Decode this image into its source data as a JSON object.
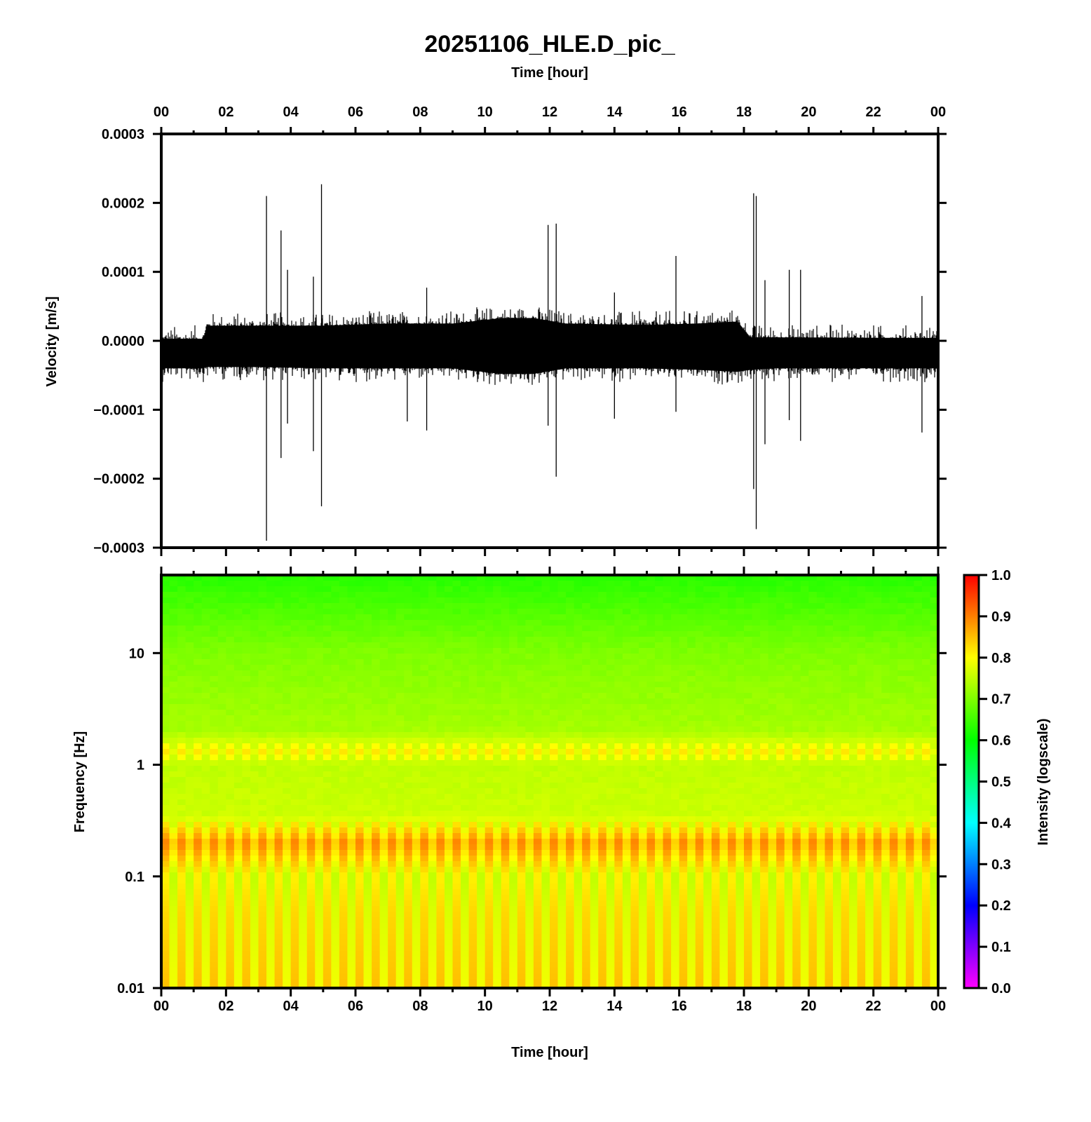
{
  "title": "20251106_HLE.D_pic_",
  "colors": {
    "trace": "#000000",
    "frame": "#000000",
    "background": "#ffffff"
  },
  "chart_data": [
    {
      "type": "line",
      "name": "seismogram",
      "xlabel_top": "Time [hour]",
      "ylabel": "Velocity [m/s]",
      "xlim": [
        0,
        24
      ],
      "ylim": [
        -0.0003,
        0.0003
      ],
      "x_ticks": [
        "00",
        "02",
        "04",
        "06",
        "08",
        "10",
        "12",
        "14",
        "16",
        "18",
        "20",
        "22",
        "00"
      ],
      "y_ticks": [
        "0.0003",
        "0.0002",
        "0.0001",
        "0.0000",
        "−0.0001",
        "−0.0002",
        "−0.0003"
      ],
      "noise_envelope": {
        "hours": [
          0.0,
          1.3,
          1.4,
          3.0,
          5.0,
          7.0,
          9.0,
          10.5,
          11.5,
          12.5,
          15.0,
          16.5,
          17.8,
          18.2,
          19.0,
          24.0
        ],
        "upper": [
          3e-06,
          3e-06,
          2.2e-05,
          2.2e-05,
          2.2e-05,
          2.5e-05,
          2.5e-05,
          3.3e-05,
          3.3e-05,
          2.5e-05,
          2.3e-05,
          2.5e-05,
          2.8e-05,
          5e-06,
          5e-06,
          4e-06
        ],
        "lower": [
          -4e-05,
          -4e-05,
          -3.8e-05,
          -3.8e-05,
          -4e-05,
          -4e-05,
          -4e-05,
          -4.8e-05,
          -4.8e-05,
          -4e-05,
          -4e-05,
          -4.2e-05,
          -4.5e-05,
          -4.2e-05,
          -4e-05,
          -4e-05
        ]
      },
      "spikes": [
        {
          "hour": 3.25,
          "max": 0.00021,
          "min": -0.00029
        },
        {
          "hour": 3.7,
          "max": 0.00016,
          "min": -0.00017
        },
        {
          "hour": 3.9,
          "max": 0.000103,
          "min": -0.00012
        },
        {
          "hour": 4.7,
          "max": 9.3e-05,
          "min": -0.00016
        },
        {
          "hour": 4.95,
          "max": 0.000227,
          "min": -0.00024
        },
        {
          "hour": 7.6,
          "max": 3e-05,
          "min": -0.000117
        },
        {
          "hour": 8.2,
          "max": 7.7e-05,
          "min": -0.00013
        },
        {
          "hour": 11.95,
          "max": 0.000168,
          "min": -0.000123
        },
        {
          "hour": 12.2,
          "max": 0.00017,
          "min": -0.000197
        },
        {
          "hour": 14.0,
          "max": 7e-05,
          "min": -0.000113
        },
        {
          "hour": 15.9,
          "max": 0.000123,
          "min": -0.000103
        },
        {
          "hour": 18.3,
          "max": 0.000214,
          "min": -0.000215
        },
        {
          "hour": 18.38,
          "max": 0.00021,
          "min": -0.000273
        },
        {
          "hour": 18.65,
          "max": 8.8e-05,
          "min": -0.00015
        },
        {
          "hour": 19.4,
          "max": 0.000103,
          "min": -0.000115
        },
        {
          "hour": 19.75,
          "max": 0.000103,
          "min": -0.000145
        },
        {
          "hour": 23.5,
          "max": 6.5e-05,
          "min": -0.000133
        }
      ]
    },
    {
      "type": "heatmap",
      "name": "spectrogram",
      "xlabel": "Time [hour]",
      "ylabel": "Frequency [Hz]",
      "xlim": [
        0,
        24
      ],
      "ylim": [
        0.01,
        50
      ],
      "yscale": "log",
      "x_ticks": [
        "00",
        "02",
        "04",
        "06",
        "08",
        "10",
        "12",
        "14",
        "16",
        "18",
        "20",
        "22",
        "00"
      ],
      "y_ticks": [
        "10",
        "1",
        "0.1",
        "0.01"
      ],
      "intensity_profile": {
        "frequency_hz": [
          0.01,
          0.05,
          0.1,
          0.2,
          0.28,
          0.35,
          1.0,
          1.3,
          2.0,
          10.0,
          50.0
        ],
        "intensity": [
          0.82,
          0.8,
          0.78,
          0.87,
          0.8,
          0.76,
          0.75,
          0.8,
          0.73,
          0.7,
          0.63
        ]
      },
      "colorbar": {
        "label": "Intensity (logscale)",
        "range": [
          0.0,
          1.0
        ],
        "ticks": [
          "1.0",
          "0.9",
          "0.8",
          "0.7",
          "0.6",
          "0.5",
          "0.4",
          "0.3",
          "0.2",
          "0.1",
          "0.0"
        ],
        "colormap": [
          "#ff00ff",
          "#0000ff",
          "#00ffff",
          "#00ff00",
          "#ffff00",
          "#ff0000"
        ]
      }
    }
  ]
}
